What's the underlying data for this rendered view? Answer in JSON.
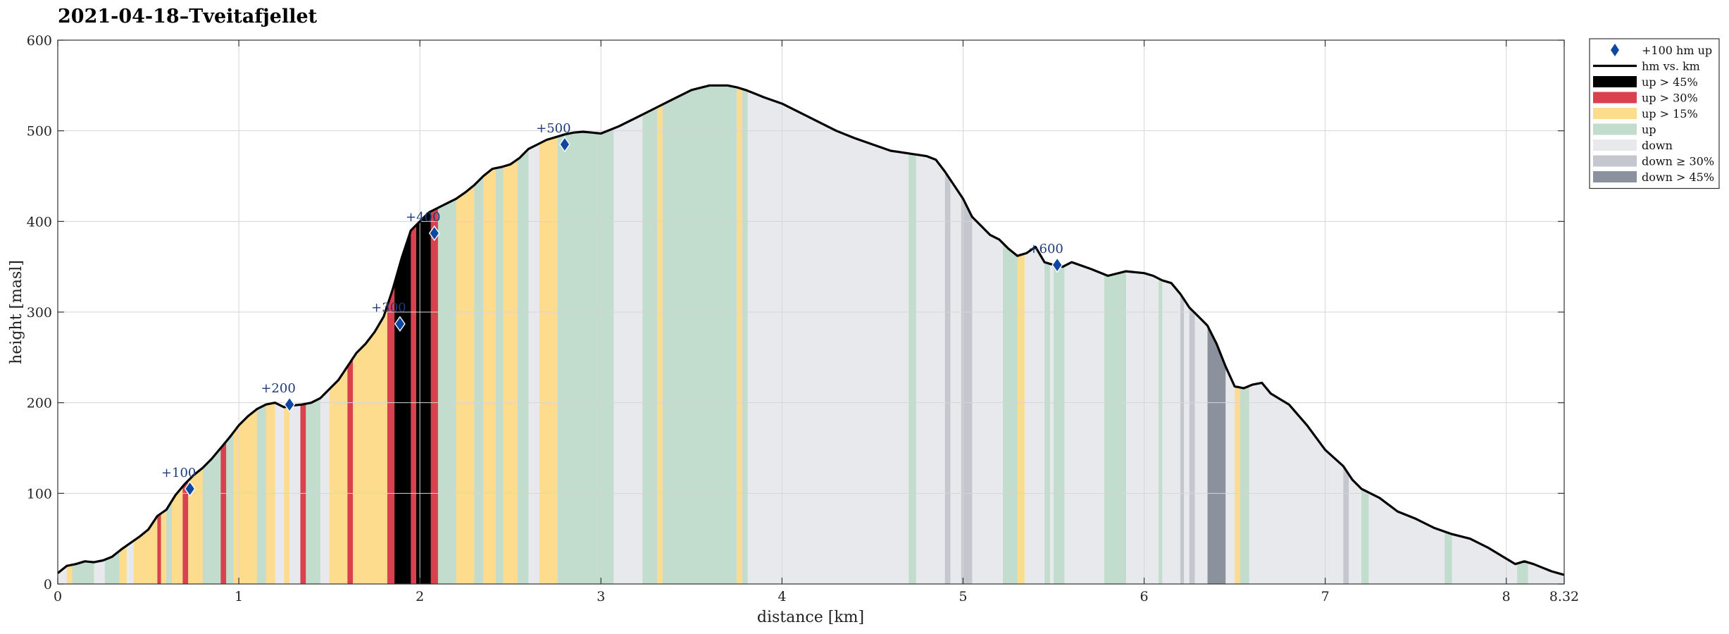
{
  "chart_data": {
    "type": "area",
    "title": "2021-04-18–Tveitafjellet",
    "xlabel": "distance [km]",
    "ylabel": "height [masl]",
    "xlim": [
      0,
      8.32
    ],
    "ylim": [
      0,
      600
    ],
    "xticks": [
      0,
      1,
      2,
      3,
      4,
      5,
      6,
      7,
      8,
      8.32
    ],
    "xtick_labels": [
      "0",
      "1",
      "2",
      "3",
      "4",
      "5",
      "6",
      "7",
      "8",
      "8.32"
    ],
    "yticks": [
      0,
      100,
      200,
      300,
      400,
      500,
      600
    ],
    "ytick_labels": [
      "0",
      "100",
      "200",
      "300",
      "400",
      "500",
      "600"
    ],
    "grid": true,
    "legend_position": "outside-right-top",
    "legend": [
      {
        "label": "+100 hm up",
        "type": "marker",
        "color": "#0d47a1"
      },
      {
        "label": "hm vs. km",
        "type": "line",
        "color": "#000000"
      },
      {
        "label": "up > 45%",
        "type": "patch",
        "color": "#000000"
      },
      {
        "label": "up > 30%",
        "type": "patch",
        "color": "#d9414f"
      },
      {
        "label": "up > 15%",
        "type": "patch",
        "color": "#fddc8e"
      },
      {
        "label": "up",
        "type": "patch",
        "color": "#c2dccd"
      },
      {
        "label": "down",
        "type": "patch",
        "color": "#e8e9ec"
      },
      {
        "label": "down ≥ 30%",
        "type": "patch",
        "color": "#c5c7ce"
      },
      {
        "label": "down > 45%",
        "type": "patch",
        "color": "#8b929e"
      }
    ],
    "colors": {
      "up45": "#000000",
      "up30": "#d9414f",
      "up15": "#fddc8e",
      "up": "#c2dccd",
      "down": "#e8e9ec",
      "down30": "#c5c7ce",
      "down45": "#8b929e",
      "line": "#000000",
      "marker": "#0d47a1",
      "marker_label": "#1f3b7a"
    },
    "profile": {
      "x": [
        0,
        0.05,
        0.1,
        0.15,
        0.2,
        0.25,
        0.3,
        0.35,
        0.4,
        0.45,
        0.5,
        0.55,
        0.6,
        0.65,
        0.7,
        0.75,
        0.8,
        0.85,
        0.9,
        0.95,
        1.0,
        1.05,
        1.1,
        1.15,
        1.2,
        1.25,
        1.3,
        1.35,
        1.4,
        1.45,
        1.5,
        1.55,
        1.6,
        1.65,
        1.7,
        1.75,
        1.8,
        1.85,
        1.9,
        1.95,
        2.0,
        2.05,
        2.1,
        2.15,
        2.2,
        2.25,
        2.3,
        2.35,
        2.4,
        2.45,
        2.5,
        2.55,
        2.6,
        2.65,
        2.7,
        2.75,
        2.8,
        2.85,
        2.9,
        2.95,
        3.0,
        3.1,
        3.2,
        3.3,
        3.4,
        3.5,
        3.6,
        3.7,
        3.75,
        3.8,
        3.85,
        3.9,
        4.0,
        4.1,
        4.2,
        4.3,
        4.4,
        4.5,
        4.6,
        4.7,
        4.8,
        4.85,
        4.9,
        4.95,
        5.0,
        5.05,
        5.1,
        5.15,
        5.2,
        5.25,
        5.3,
        5.35,
        5.4,
        5.45,
        5.5,
        5.55,
        5.6,
        5.7,
        5.8,
        5.9,
        6.0,
        6.05,
        6.1,
        6.15,
        6.2,
        6.25,
        6.3,
        6.35,
        6.4,
        6.45,
        6.5,
        6.55,
        6.6,
        6.65,
        6.7,
        6.8,
        6.9,
        7.0,
        7.1,
        7.15,
        7.2,
        7.3,
        7.4,
        7.5,
        7.6,
        7.7,
        7.8,
        7.9,
        8.0,
        8.05,
        8.1,
        8.15,
        8.2,
        8.25,
        8.32
      ],
      "y": [
        12,
        20,
        22,
        25,
        24,
        26,
        30,
        38,
        45,
        52,
        60,
        75,
        82,
        98,
        110,
        120,
        128,
        138,
        150,
        162,
        175,
        185,
        193,
        198,
        200,
        195,
        197,
        198,
        200,
        205,
        215,
        225,
        240,
        255,
        265,
        278,
        295,
        325,
        360,
        390,
        400,
        410,
        415,
        420,
        425,
        432,
        440,
        450,
        458,
        460,
        463,
        470,
        480,
        485,
        490,
        493,
        496,
        498,
        499,
        498,
        497,
        505,
        515,
        525,
        535,
        545,
        550,
        550,
        548,
        545,
        541,
        537,
        530,
        520,
        510,
        500,
        492,
        485,
        478,
        475,
        472,
        468,
        455,
        440,
        425,
        405,
        395,
        385,
        380,
        370,
        362,
        365,
        372,
        355,
        352,
        350,
        355,
        348,
        340,
        345,
        343,
        340,
        335,
        332,
        320,
        305,
        295,
        285,
        265,
        240,
        218,
        216,
        220,
        222,
        210,
        198,
        175,
        148,
        130,
        115,
        105,
        95,
        80,
        72,
        62,
        55,
        50,
        40,
        28,
        22,
        25,
        22,
        18,
        14,
        10
      ]
    },
    "segments": [
      [
        0.0,
        0.05,
        "down"
      ],
      [
        0.05,
        0.08,
        "up15"
      ],
      [
        0.08,
        0.2,
        "up"
      ],
      [
        0.2,
        0.26,
        "down"
      ],
      [
        0.26,
        0.34,
        "up"
      ],
      [
        0.34,
        0.38,
        "up15"
      ],
      [
        0.38,
        0.42,
        "down"
      ],
      [
        0.42,
        0.55,
        "up15"
      ],
      [
        0.55,
        0.57,
        "up30"
      ],
      [
        0.57,
        0.6,
        "up15"
      ],
      [
        0.6,
        0.63,
        "up"
      ],
      [
        0.63,
        0.69,
        "up15"
      ],
      [
        0.69,
        0.72,
        "up30"
      ],
      [
        0.72,
        0.8,
        "up15"
      ],
      [
        0.8,
        0.9,
        "up"
      ],
      [
        0.9,
        0.93,
        "up30"
      ],
      [
        0.93,
        0.97,
        "up"
      ],
      [
        0.97,
        1.1,
        "up15"
      ],
      [
        1.1,
        1.15,
        "up"
      ],
      [
        1.15,
        1.2,
        "up15"
      ],
      [
        1.2,
        1.25,
        "down"
      ],
      [
        1.25,
        1.28,
        "up15"
      ],
      [
        1.28,
        1.34,
        "down"
      ],
      [
        1.34,
        1.37,
        "up30"
      ],
      [
        1.37,
        1.45,
        "up"
      ],
      [
        1.45,
        1.5,
        "down"
      ],
      [
        1.5,
        1.6,
        "up15"
      ],
      [
        1.6,
        1.63,
        "up30"
      ],
      [
        1.63,
        1.82,
        "up15"
      ],
      [
        1.82,
        1.86,
        "up30"
      ],
      [
        1.86,
        1.95,
        "up45"
      ],
      [
        1.95,
        1.98,
        "up30"
      ],
      [
        1.98,
        2.06,
        "up45"
      ],
      [
        2.06,
        2.1,
        "up30"
      ],
      [
        2.1,
        2.2,
        "up"
      ],
      [
        2.2,
        2.3,
        "up15"
      ],
      [
        2.3,
        2.35,
        "up"
      ],
      [
        2.35,
        2.42,
        "up15"
      ],
      [
        2.42,
        2.46,
        "up"
      ],
      [
        2.46,
        2.54,
        "up15"
      ],
      [
        2.54,
        2.6,
        "up"
      ],
      [
        2.6,
        2.66,
        "down"
      ],
      [
        2.66,
        2.76,
        "up15"
      ],
      [
        2.76,
        3.07,
        "up"
      ],
      [
        3.07,
        3.23,
        "down"
      ],
      [
        3.23,
        3.31,
        "up"
      ],
      [
        3.31,
        3.34,
        "up15"
      ],
      [
        3.34,
        3.75,
        "up"
      ],
      [
        3.75,
        3.78,
        "up15"
      ],
      [
        3.78,
        3.81,
        "up"
      ],
      [
        3.81,
        4.7,
        "down"
      ],
      [
        4.7,
        4.74,
        "up"
      ],
      [
        4.74,
        4.9,
        "down"
      ],
      [
        4.9,
        4.93,
        "down30"
      ],
      [
        4.93,
        4.99,
        "down"
      ],
      [
        4.99,
        5.05,
        "down30"
      ],
      [
        5.05,
        5.22,
        "down"
      ],
      [
        5.22,
        5.3,
        "up"
      ],
      [
        5.3,
        5.34,
        "up15"
      ],
      [
        5.34,
        5.45,
        "down"
      ],
      [
        5.45,
        5.48,
        "up"
      ],
      [
        5.48,
        5.5,
        "down"
      ],
      [
        5.5,
        5.56,
        "up"
      ],
      [
        5.56,
        5.78,
        "down"
      ],
      [
        5.78,
        5.9,
        "up"
      ],
      [
        5.9,
        6.08,
        "down"
      ],
      [
        6.08,
        6.1,
        "up"
      ],
      [
        6.1,
        6.2,
        "down"
      ],
      [
        6.2,
        6.22,
        "down30"
      ],
      [
        6.22,
        6.25,
        "down"
      ],
      [
        6.25,
        6.28,
        "down30"
      ],
      [
        6.28,
        6.35,
        "down"
      ],
      [
        6.35,
        6.45,
        "down45"
      ],
      [
        6.45,
        6.5,
        "down"
      ],
      [
        6.5,
        6.53,
        "up15"
      ],
      [
        6.53,
        6.58,
        "up"
      ],
      [
        6.58,
        7.1,
        "down"
      ],
      [
        7.1,
        7.13,
        "down30"
      ],
      [
        7.13,
        7.2,
        "down"
      ],
      [
        7.2,
        7.24,
        "up"
      ],
      [
        7.24,
        7.66,
        "down"
      ],
      [
        7.66,
        7.7,
        "up"
      ],
      [
        7.7,
        8.06,
        "down"
      ],
      [
        8.06,
        8.12,
        "up"
      ],
      [
        8.12,
        8.32,
        "down"
      ]
    ],
    "markers": [
      {
        "x": 0.73,
        "y": 105,
        "label": "+100"
      },
      {
        "x": 1.28,
        "y": 198,
        "label": "+200"
      },
      {
        "x": 1.89,
        "y": 287,
        "label": "+300"
      },
      {
        "x": 2.08,
        "y": 387,
        "label": "+400"
      },
      {
        "x": 2.8,
        "y": 485,
        "label": "+500"
      },
      {
        "x": 5.52,
        "y": 352,
        "label": "+600"
      }
    ]
  }
}
